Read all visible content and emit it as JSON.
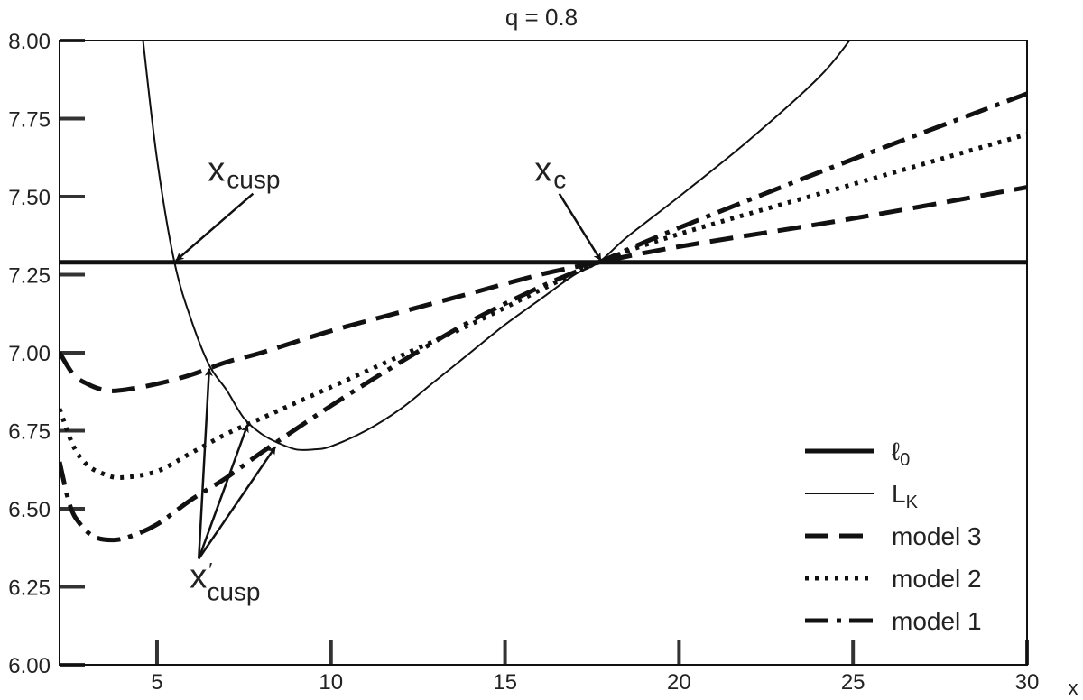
{
  "chart_data": {
    "type": "line",
    "title": "q = 0.8",
    "xlabel": "x",
    "ylabel": "",
    "xlim": [
      2.2,
      30
    ],
    "ylim": [
      6.0,
      8.0
    ],
    "x_ticks": [
      5,
      10,
      15,
      20,
      25,
      30
    ],
    "x_tick_labels": [
      "5",
      "10",
      "15",
      "20",
      "25",
      "30"
    ],
    "y_ticks": [
      6.0,
      6.25,
      6.5,
      6.75,
      7.0,
      7.25,
      7.5,
      7.75,
      8.0
    ],
    "y_tick_labels": [
      "6.00",
      "6.25",
      "6.50",
      "6.75",
      "7.00",
      "7.25",
      "7.50",
      "7.75",
      "8.00"
    ],
    "grid": false,
    "legend_position": "bottom-right",
    "series": [
      {
        "name": "ℓ0",
        "style": "thick-solid",
        "x": [
          2.2,
          30
        ],
        "y": [
          7.29,
          7.29
        ]
      },
      {
        "name": "LK",
        "style": "thin-solid",
        "x": [
          4.6,
          5.0,
          5.5,
          6.0,
          6.5,
          7.0,
          7.5,
          8.0,
          8.5,
          9.0,
          9.5,
          10.0,
          11.0,
          12.0,
          13.0,
          14.0,
          15.0,
          16.0,
          17.0,
          17.7,
          18.5,
          20.0,
          22.0,
          24.0,
          24.9
        ],
        "y": [
          8.0,
          7.62,
          7.29,
          7.1,
          6.96,
          6.88,
          6.79,
          6.74,
          6.71,
          6.69,
          6.69,
          6.7,
          6.75,
          6.82,
          6.91,
          7.0,
          7.09,
          7.17,
          7.25,
          7.29,
          7.37,
          7.5,
          7.68,
          7.88,
          8.0
        ]
      },
      {
        "name": "model 3",
        "style": "dashed",
        "x": [
          2.2,
          2.6,
          3.0,
          3.5,
          4.0,
          5.0,
          6.0,
          7.0,
          8.0,
          10.0,
          12.0,
          14.0,
          16.0,
          17.7,
          20.0,
          25.0,
          30.0
        ],
        "y": [
          7.0,
          6.93,
          6.9,
          6.88,
          6.88,
          6.9,
          6.93,
          6.97,
          7.0,
          7.07,
          7.13,
          7.19,
          7.25,
          7.29,
          7.34,
          7.43,
          7.53
        ]
      },
      {
        "name": "model 2",
        "style": "dotted",
        "x": [
          2.2,
          2.6,
          3.0,
          3.5,
          4.0,
          5.0,
          6.0,
          7.0,
          8.0,
          10.0,
          12.0,
          14.0,
          16.0,
          17.7,
          20.0,
          25.0,
          30.0
        ],
        "y": [
          6.82,
          6.7,
          6.64,
          6.61,
          6.6,
          6.62,
          6.68,
          6.74,
          6.79,
          6.89,
          6.99,
          7.09,
          7.2,
          7.29,
          7.38,
          7.54,
          7.7
        ]
      },
      {
        "name": "model 1",
        "style": "dash-dot",
        "x": [
          2.2,
          2.5,
          2.8,
          3.2,
          3.7,
          4.2,
          5.0,
          6.0,
          7.0,
          8.0,
          10.0,
          12.0,
          14.0,
          16.0,
          17.7,
          20.0,
          25.0,
          30.0
        ],
        "y": [
          6.65,
          6.51,
          6.45,
          6.41,
          6.4,
          6.41,
          6.45,
          6.53,
          6.6,
          6.68,
          6.83,
          6.97,
          7.1,
          7.21,
          7.29,
          7.4,
          7.62,
          7.83
        ]
      }
    ],
    "annotations": [
      {
        "text": "x",
        "subscript": "cusp",
        "target": [
          5.5,
          7.29
        ],
        "text_at": [
          7.5,
          7.55
        ]
      },
      {
        "text": "x",
        "subscript": "c",
        "target": [
          17.7,
          7.29
        ],
        "text_at": [
          16.3,
          7.55
        ]
      },
      {
        "text": "x",
        "subscript": "cusp",
        "prime": "′",
        "origin": [
          6.2,
          6.34
        ],
        "targets": [
          [
            6.5,
            6.96
          ],
          [
            7.6,
            6.78
          ],
          [
            8.4,
            6.71
          ]
        ]
      }
    ]
  }
}
